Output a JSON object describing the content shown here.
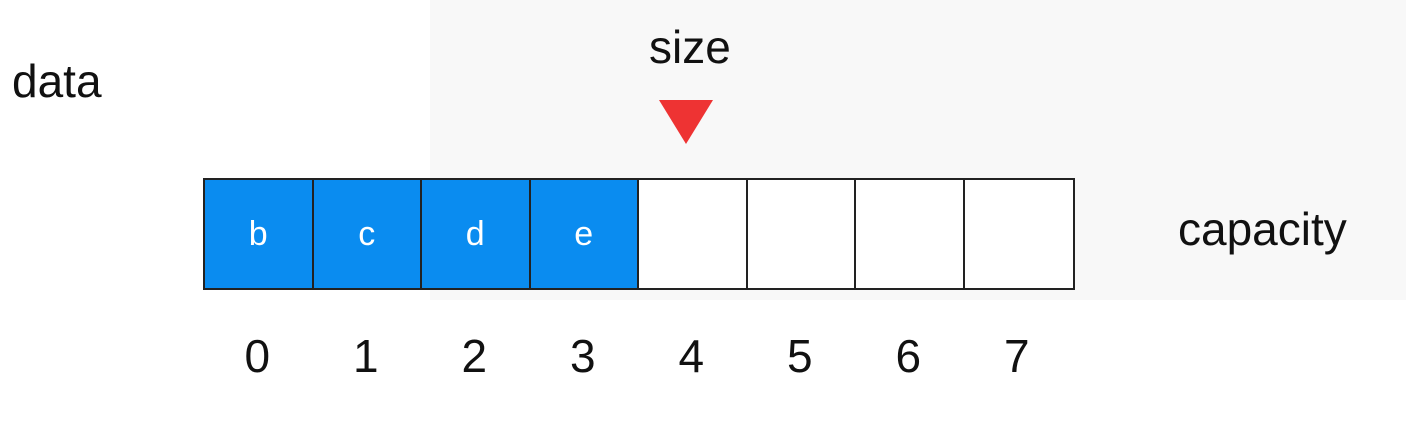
{
  "labels": {
    "data": "data",
    "size": "size",
    "capacity": "capacity"
  },
  "colors": {
    "filled": "#0a8cf0",
    "pointer": "#ee3333"
  },
  "array": {
    "size": 4,
    "capacity": 8,
    "cells": [
      {
        "value": "b",
        "filled": true
      },
      {
        "value": "c",
        "filled": true
      },
      {
        "value": "d",
        "filled": true
      },
      {
        "value": "e",
        "filled": true
      },
      {
        "value": "",
        "filled": false
      },
      {
        "value": "",
        "filled": false
      },
      {
        "value": "",
        "filled": false
      },
      {
        "value": "",
        "filled": false
      }
    ],
    "indices": [
      "0",
      "1",
      "2",
      "3",
      "4",
      "5",
      "6",
      "7"
    ]
  }
}
